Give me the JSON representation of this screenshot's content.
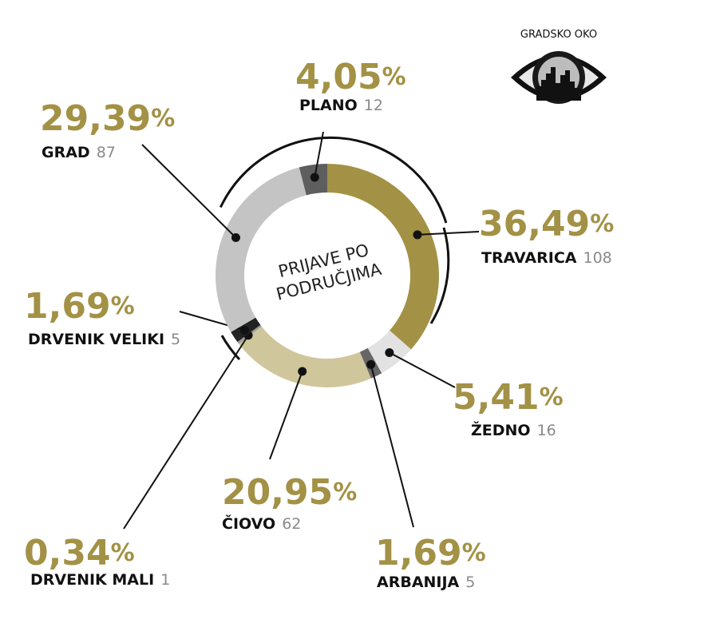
{
  "chart_data": {
    "type": "donut",
    "title": [
      "PRIJAVE PO",
      "PODRUČJIMA"
    ],
    "brand": "GRADSKO OKO",
    "categories": [
      "TRAVARICA",
      "ŽEDNO",
      "ARBANIJA",
      "ČIOVO",
      "DRVENIK MALI",
      "DRVENIK VELIKI",
      "GRAD",
      "PLANO"
    ],
    "values": [
      36.49,
      5.41,
      1.69,
      20.95,
      0.34,
      1.69,
      29.39,
      4.05
    ],
    "value_labels": [
      "36,49%",
      "5,41%",
      "1,69%",
      "20,95%",
      "0,34%",
      "1,69%",
      "29,39%",
      "4,05%"
    ],
    "counts": [
      108,
      16,
      5,
      62,
      1,
      5,
      87,
      12
    ],
    "colors": [
      "#a39145",
      "#e2e2e2",
      "#666666",
      "#d0c69b",
      "#9a9a9a",
      "#222222",
      "#c4c4c4",
      "#5e5e5e"
    ]
  }
}
